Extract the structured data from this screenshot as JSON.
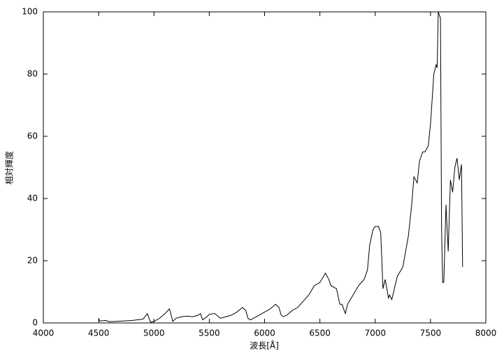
{
  "chart_data": {
    "type": "line",
    "x_label": "波長[Å]",
    "y_label": "相対輝度",
    "color": "#000000",
    "x": [
      4500,
      4510,
      4560,
      4600,
      4700,
      4800,
      4850,
      4900,
      4940,
      4960,
      4970,
      5000,
      5050,
      5100,
      5140,
      5160,
      5170,
      5200,
      5250,
      5300,
      5350,
      5400,
      5420,
      5440,
      5480,
      5500,
      5550,
      5600,
      5650,
      5700,
      5750,
      5800,
      5830,
      5850,
      5870,
      5900,
      5950,
      6000,
      6050,
      6100,
      6130,
      6150,
      6170,
      6200,
      6250,
      6300,
      6350,
      6400,
      6450,
      6500,
      6550,
      6580,
      6600,
      6650,
      6680,
      6700,
      6730,
      6750,
      6800,
      6850,
      6900,
      6930,
      6950,
      6980,
      7000,
      7030,
      7050,
      7070,
      7090,
      7100,
      7120,
      7130,
      7150,
      7180,
      7200,
      7250,
      7280,
      7300,
      7330,
      7350,
      7380,
      7400,
      7430,
      7450,
      7480,
      7500,
      7530,
      7550,
      7560,
      7570,
      7590,
      7600,
      7610,
      7620,
      7640,
      7660,
      7680,
      7700,
      7720,
      7740,
      7760,
      7780,
      7790
    ],
    "values": [
      1.5,
      0.6,
      0.8,
      0.4,
      0.6,
      0.8,
      1,
      1.2,
      3,
      1,
      0.2,
      0.5,
      1.5,
      3,
      4.5,
      2,
      0.5,
      1.5,
      2,
      2.2,
      2,
      2.5,
      3,
      1,
      2,
      2.8,
      3,
      1.5,
      2,
      2.5,
      3.5,
      5,
      4,
      1.5,
      1,
      1.5,
      2.5,
      3.5,
      4.5,
      6,
      5,
      2.5,
      2,
      2.5,
      4,
      5,
      7,
      9,
      12,
      13,
      16,
      14,
      12,
      11,
      6,
      6,
      3,
      6,
      9,
      12,
      14,
      17,
      25,
      30,
      31,
      31,
      29,
      11,
      14,
      12,
      8,
      9,
      7.5,
      12,
      15,
      18,
      24,
      28,
      38,
      47,
      45,
      52,
      55,
      55,
      57,
      64,
      80,
      83,
      82,
      100,
      98,
      30,
      13,
      13,
      38,
      23,
      46,
      42,
      50,
      53,
      46,
      51,
      18
    ],
    "xlim": [
      4000,
      8000
    ],
    "xticks": [
      4000,
      4500,
      5000,
      5500,
      6000,
      6500,
      7000,
      7500,
      8000
    ],
    "ylim": [
      0,
      100
    ],
    "yticks": [
      0,
      20,
      40,
      60,
      80,
      100
    ]
  }
}
